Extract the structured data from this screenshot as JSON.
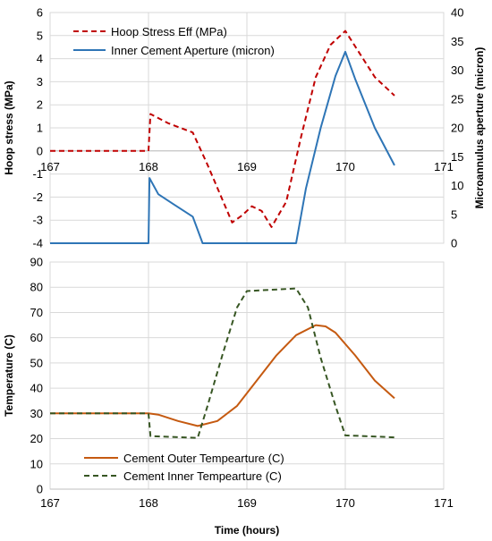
{
  "chart_data": [
    {
      "type": "line",
      "title": "",
      "xlabel": "",
      "ylabel": "Hoop stress (MPa)",
      "y2label": "Microannulus aperture (micron)",
      "xlim": [
        167,
        171
      ],
      "ylim": [
        -4,
        6
      ],
      "y2lim": [
        0,
        40
      ],
      "xticks": [
        "167",
        "168",
        "169",
        "170",
        "171"
      ],
      "yticks": [
        "6",
        "5",
        "4",
        "3",
        "2",
        "1",
        "0",
        "-1",
        "-2",
        "-3",
        "-4"
      ],
      "y2ticks": [
        "40",
        "35",
        "30",
        "25",
        "20",
        "15",
        "10",
        "5",
        "0"
      ],
      "grid": true,
      "legend": "top-left",
      "colors": {
        "hoop": "#c00000",
        "aperture": "#2e75b6"
      },
      "series": [
        {
          "name": "Hoop Stress Eff (MPa)",
          "axis": "left",
          "style": "dashed",
          "x": [
            167,
            168,
            168.02,
            168.2,
            168.45,
            168.6,
            168.75,
            168.85,
            168.95,
            169.05,
            169.15,
            169.25,
            169.4,
            169.55,
            169.7,
            169.85,
            170.0,
            170.15,
            170.3,
            170.5
          ],
          "y": [
            0,
            0,
            1.6,
            1.2,
            0.8,
            -0.6,
            -2.1,
            -3.1,
            -2.8,
            -2.4,
            -2.6,
            -3.3,
            -2.2,
            0.6,
            3.2,
            4.6,
            5.2,
            4.2,
            3.2,
            2.4
          ]
        },
        {
          "name": "Inner Cement Aperture (micron)",
          "axis": "right",
          "style": "solid",
          "x": [
            167,
            168,
            168.01,
            168.1,
            168.25,
            168.45,
            168.55,
            169.5,
            169.6,
            169.75,
            169.9,
            170.0,
            170.1,
            170.3,
            170.5
          ],
          "y": [
            0,
            0,
            11.3,
            8.5,
            6.8,
            4.6,
            0,
            0,
            9.5,
            20,
            29,
            33.2,
            28.5,
            20,
            13.5
          ]
        }
      ]
    },
    {
      "type": "line",
      "title": "",
      "xlabel": "Time (hours)",
      "ylabel": "Temperature (C)",
      "xlim": [
        167,
        171
      ],
      "ylim": [
        0,
        90
      ],
      "xticks": [
        "167",
        "168",
        "169",
        "170",
        "171"
      ],
      "yticks": [
        "90",
        "80",
        "70",
        "60",
        "50",
        "40",
        "30",
        "20",
        "10",
        "0"
      ],
      "grid": true,
      "legend": "bottom-left",
      "colors": {
        "outer": "#c55a11",
        "inner": "#375623"
      },
      "series": [
        {
          "name": "Cement Outer Tempearture (C)",
          "style": "solid",
          "x": [
            167,
            168,
            168.1,
            168.3,
            168.5,
            168.7,
            168.9,
            169.1,
            169.3,
            169.5,
            169.7,
            169.8,
            169.9,
            170.1,
            170.3,
            170.5
          ],
          "y": [
            30,
            30,
            29.5,
            27,
            25,
            27,
            33,
            43,
            53,
            61,
            65,
            64.5,
            62,
            53,
            43,
            36
          ]
        },
        {
          "name": "Cement Inner Tempearture (C)",
          "style": "dashed",
          "x": [
            167,
            168,
            168.02,
            168.5,
            168.6,
            168.75,
            168.9,
            169.0,
            169.5,
            169.62,
            169.75,
            169.9,
            170.0,
            170.2,
            170.5
          ],
          "y": [
            30,
            30,
            21,
            20.3,
            33,
            53,
            72,
            78.5,
            79.5,
            72,
            52,
            33,
            21.3,
            21,
            20.5
          ]
        }
      ]
    }
  ]
}
